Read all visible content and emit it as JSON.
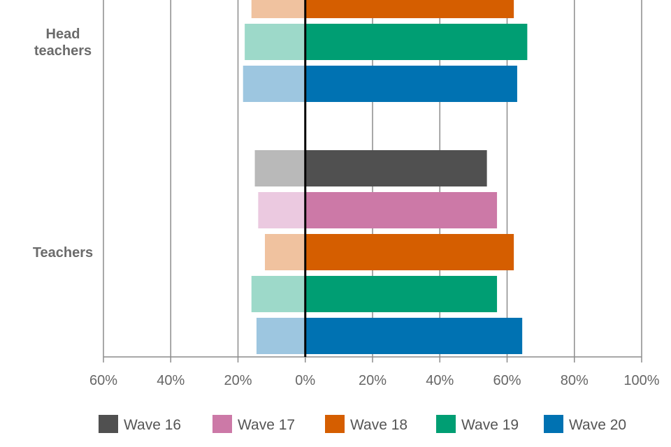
{
  "chart_data": {
    "type": "bar",
    "orientation": "horizontal-diverging",
    "title": "",
    "xlabel": "",
    "ylabel": "",
    "xlim": [
      -60,
      100
    ],
    "xticks": [
      -60,
      -40,
      -20,
      0,
      20,
      40,
      60,
      80,
      100
    ],
    "xtick_labels": [
      "60%",
      "40%",
      "20%",
      "0%",
      "20%",
      "40%",
      "60%",
      "80%",
      "100%"
    ],
    "grid": true,
    "legend_position": "bottom",
    "groups": [
      {
        "label": "Head teachers",
        "label_lines": [
          "Head",
          "teachers"
        ],
        "bars": [
          {
            "series": "Wave 18",
            "negative": -16,
            "positive": 62
          },
          {
            "series": "Wave 19",
            "negative": -18,
            "positive": 66
          },
          {
            "series": "Wave 20",
            "negative": -18.5,
            "positive": 63
          }
        ]
      },
      {
        "label": "Teachers",
        "label_lines": [
          "Teachers"
        ],
        "bars": [
          {
            "series": "Wave 16",
            "negative": -15,
            "positive": 54
          },
          {
            "series": "Wave 17",
            "negative": -14,
            "positive": 57
          },
          {
            "series": "Wave 18",
            "negative": -12,
            "positive": 62
          },
          {
            "series": "Wave 19",
            "negative": -16,
            "positive": 57
          },
          {
            "series": "Wave 20",
            "negative": -14.5,
            "positive": 64.5
          }
        ]
      }
    ],
    "series": [
      {
        "name": "Wave 16",
        "color": "#505050",
        "light_color": "#b9b9b9"
      },
      {
        "name": "Wave 17",
        "color": "#cc79a7",
        "light_color": "#ebc9e0"
      },
      {
        "name": "Wave 18",
        "color": "#d55e00",
        "light_color": "#f0c29f"
      },
      {
        "name": "Wave 19",
        "color": "#009e73",
        "light_color": "#9dd9c9"
      },
      {
        "name": "Wave 20",
        "color": "#0072b2",
        "light_color": "#9dc6e0"
      }
    ]
  }
}
